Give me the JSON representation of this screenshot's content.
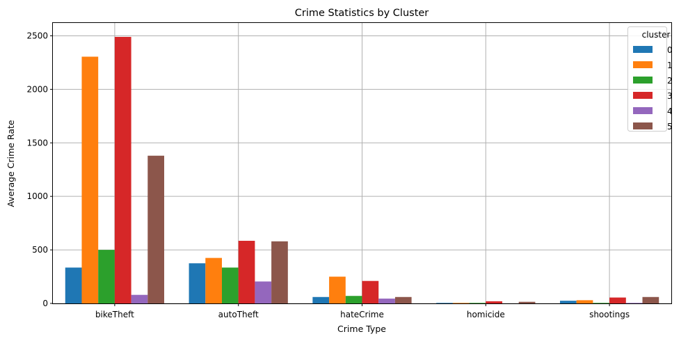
{
  "chart_data": {
    "type": "bar",
    "title": "Crime Statistics by Cluster",
    "xlabel": "Crime Type",
    "ylabel": "Average Crime Rate",
    "categories": [
      "bikeTheft",
      "autoTheft",
      "hateCrime",
      "homicide",
      "shootings"
    ],
    "yticks": [
      "0",
      "500",
      "1000",
      "1500",
      "2000",
      "2500"
    ],
    "ylim": [
      0,
      2620
    ],
    "grid": true,
    "legend": {
      "title": "cluster",
      "placement": "top-right"
    },
    "series": [
      {
        "name": "0",
        "color": "#1f77b4",
        "values": [
          335,
          375,
          60,
          5,
          25
        ]
      },
      {
        "name": "1",
        "color": "#ff7f0e",
        "values": [
          2305,
          425,
          250,
          5,
          30
        ]
      },
      {
        "name": "2",
        "color": "#2ca02c",
        "values": [
          500,
          335,
          70,
          5,
          5
        ]
      },
      {
        "name": "3",
        "color": "#d62728",
        "values": [
          2490,
          585,
          210,
          20,
          55
        ]
      },
      {
        "name": "4",
        "color": "#9467bd",
        "values": [
          80,
          205,
          45,
          0,
          5
        ]
      },
      {
        "name": "5",
        "color": "#8c564b",
        "values": [
          1380,
          580,
          60,
          15,
          60
        ]
      }
    ]
  }
}
